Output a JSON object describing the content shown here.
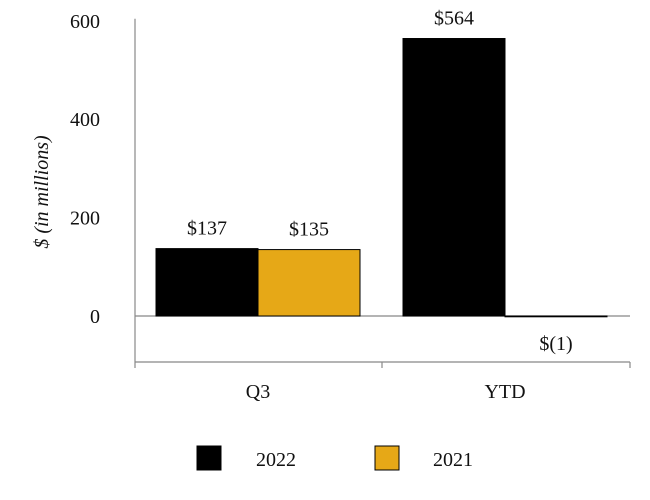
{
  "chart_data": {
    "type": "bar",
    "categories": [
      "Q3",
      "YTD"
    ],
    "series": [
      {
        "name": "2022",
        "values": [
          137,
          564
        ],
        "labels": [
          "$137",
          "$564"
        ],
        "color": "#000000"
      },
      {
        "name": "2021",
        "values": [
          135,
          -1
        ],
        "labels": [
          "$135",
          "$(1)"
        ],
        "color": "#E6A817"
      }
    ],
    "ylabel": "$ (in millions)",
    "ylim": [
      -100,
      600
    ],
    "yticks": [
      0,
      200,
      400,
      600
    ],
    "grid": false,
    "legend_position": "bottom"
  }
}
